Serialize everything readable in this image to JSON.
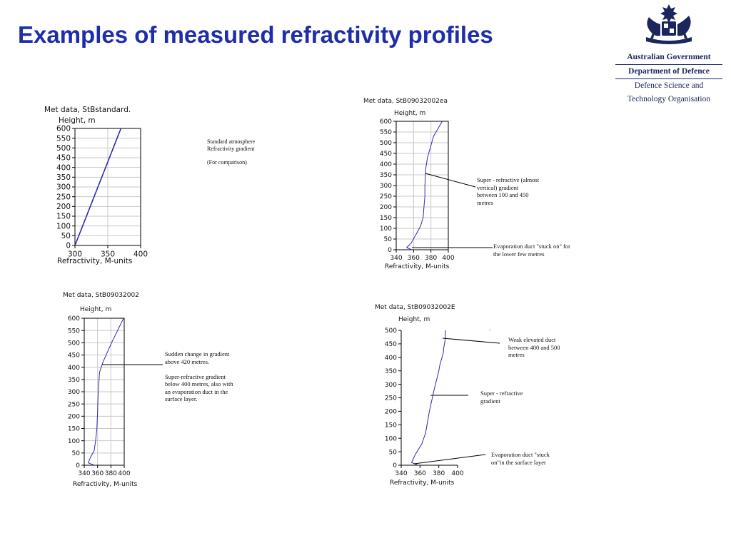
{
  "slide": {
    "title": "Examples of measured refractivity profiles"
  },
  "logo": {
    "line1": "Australian Government",
    "line2": "Department of Defence",
    "line3": "Defence Science and",
    "line4": "Technology Organisation"
  },
  "colors": {
    "title": "#1f2ea8",
    "profile": "#2b2bb0",
    "grid": "#c8c8c8"
  },
  "chart_data": [
    {
      "type": "line",
      "title": "Met data, StBstandard.",
      "ylabel": "Height, m",
      "xlabel": "Refractivity, M-units",
      "xlim": [
        300,
        400
      ],
      "ylim": [
        0,
        600
      ],
      "xticks": [
        300,
        350,
        400
      ],
      "yticks": [
        0,
        50,
        100,
        150,
        200,
        250,
        300,
        350,
        400,
        450,
        500,
        550,
        600
      ],
      "grid": true,
      "series": [
        {
          "x": [
            300,
            370
          ],
          "y": [
            0,
            600
          ]
        }
      ]
    },
    {
      "type": "line",
      "title": "Met data, StB09032002ea",
      "ylabel": "Height, m",
      "xlabel": "Refractivity, M-units",
      "xlim": [
        340,
        400
      ],
      "ylim": [
        0,
        600
      ],
      "xticks": [
        340,
        360,
        380,
        400
      ],
      "yticks": [
        0,
        50,
        100,
        150,
        200,
        250,
        300,
        350,
        400,
        450,
        500,
        550,
        600
      ],
      "grid": true,
      "series": [
        {
          "x": [
            358,
            352,
            357,
            364,
            368,
            371,
            372,
            373,
            373,
            374,
            376,
            383,
            393
          ],
          "y": [
            0,
            10,
            30,
            80,
            110,
            150,
            200,
            250,
            300,
            380,
            430,
            530,
            600
          ]
        }
      ]
    },
    {
      "type": "line",
      "title": "Met data, StB09032002",
      "ylabel": "Height, m",
      "xlabel": "Refractivity, M-units",
      "xlim": [
        340,
        400
      ],
      "ylim": [
        0,
        600
      ],
      "xticks": [
        340,
        360,
        380,
        400
      ],
      "yticks": [
        0,
        50,
        100,
        150,
        200,
        250,
        300,
        350,
        400,
        450,
        500,
        550,
        600
      ],
      "grid": true,
      "series": [
        {
          "x": [
            355,
            346,
            349,
            355,
            357,
            359,
            360,
            361,
            363,
            368,
            381,
            399
          ],
          "y": [
            0,
            10,
            30,
            60,
            100,
            150,
            220,
            300,
            380,
            420,
            500,
            600
          ]
        }
      ]
    },
    {
      "type": "line",
      "title": "Met data, StB09032002E",
      "ylabel": "Height, m",
      "xlabel": "Refractivity, M-units",
      "xlim": [
        340,
        400
      ],
      "ylim": [
        0,
        500
      ],
      "xticks": [
        340,
        360,
        380,
        400
      ],
      "yticks": [
        0,
        50,
        100,
        150,
        200,
        250,
        300,
        350,
        400,
        450,
        500
      ],
      "grid": false,
      "series": [
        {
          "x": [
            358,
            351,
            355,
            362,
            366,
            370,
            375,
            380,
            381,
            385,
            385,
            387,
            387
          ],
          "y": [
            0,
            10,
            40,
            80,
            120,
            200,
            280,
            350,
            370,
            420,
            430,
            470,
            500
          ]
        }
      ]
    }
  ],
  "annotations": {
    "a1": [
      "Standard atmosphere",
      "Refractivity gradient",
      "",
      "(For comparison)"
    ],
    "a2": [
      "Super - refractive (almost",
      "vertical) gradient",
      "between 100 and 450",
      "metres"
    ],
    "a3": [
      "Evaporation duct \"stuck on\" for",
      "the lower few metres"
    ],
    "a4": [
      "Sudden change in gradient",
      "above 420 metres.",
      "",
      "Super-refractive gradient",
      "below 400 metres, also with",
      "an evaporation duct in the",
      "surface layer."
    ],
    "a5": [
      "Weak elevated duct",
      "between 400 and 500",
      "metres"
    ],
    "a6": [
      "Super - refractive",
      "gradient"
    ],
    "a7": [
      "Evaporation duct \"stuck",
      "on\"in the surface layer"
    ],
    "a8": "."
  }
}
